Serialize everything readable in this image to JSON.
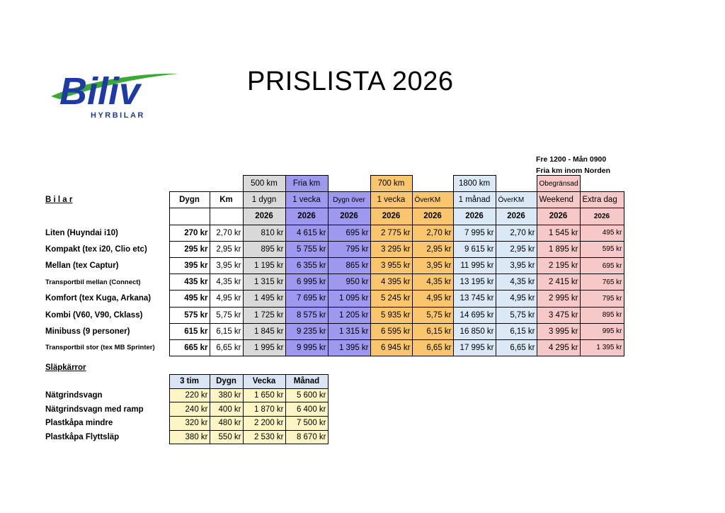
{
  "brand": {
    "name": "Biliv",
    "tagline": "HYRBILAR",
    "colors": {
      "blue": "#1d3aa6",
      "green": "#3aaa35"
    }
  },
  "title": "PRISLISTA 2026",
  "notes": {
    "line1": "Fre 1200 - Mån 0900",
    "line2": "Fria km inom Norden"
  },
  "cars": {
    "section_label": "B i l a r",
    "header_top": {
      "c1": "500 km",
      "c2": "Fria km",
      "c4": "700 km",
      "c6": "1800 km",
      "c8": "Obegränsad"
    },
    "header_mid": {
      "dygn": "Dygn",
      "km": "Km",
      "c1": "1 dygn",
      "c2": "1 vecka",
      "c3": "Dygn över",
      "c4": "1 vecka",
      "c5": "ÖverKM",
      "c6": "1 månad",
      "c7": "ÖverKM",
      "c8": "Weekend",
      "c9": "Extra dag"
    },
    "year": "2026",
    "rows": [
      {
        "name": "Liten (Huyndai i10)",
        "dygn": "270 kr",
        "km": "2,70 kr",
        "c1": "810 kr",
        "c2": "4 615 kr",
        "c3": "695 kr",
        "c4": "2 775 kr",
        "c5": "2,70 kr",
        "c6": "7 995 kr",
        "c7": "2,70 kr",
        "c8": "1 545 kr",
        "c9": "495 kr"
      },
      {
        "name": "Kompakt (tex i20, Clio etc)",
        "dygn": "295 kr",
        "km": "2,95 kr",
        "c1": "895 kr",
        "c2": "5 755 kr",
        "c3": "795 kr",
        "c4": "3 295 kr",
        "c5": "2,95 kr",
        "c6": "9 615 kr",
        "c7": "2,95 kr",
        "c8": "1 895 kr",
        "c9": "595 kr"
      },
      {
        "name": "Mellan (tex Captur)",
        "dygn": "395 kr",
        "km": "3,95 kr",
        "c1": "1 195 kr",
        "c2": "6 355 kr",
        "c3": "865 kr",
        "c4": "3 955 kr",
        "c5": "3,95 kr",
        "c6": "11 995 kr",
        "c7": "3,95 kr",
        "c8": "2 195 kr",
        "c9": "695 kr"
      },
      {
        "name": "Transportbil mellan (Connect)",
        "small": true,
        "dygn": "435 kr",
        "km": "4,35 kr",
        "c1": "1 315 kr",
        "c2": "6 995 kr",
        "c3": "950 kr",
        "c4": "4 395 kr",
        "c5": "4,35 kr",
        "c6": "13 195 kr",
        "c7": "4,35 kr",
        "c8": "2 415 kr",
        "c9": "765 kr"
      },
      {
        "name": "Komfort (tex Kuga, Arkana)",
        "dygn": "495 kr",
        "km": "4,95 kr",
        "c1": "1 495 kr",
        "c2": "7 695 kr",
        "c3": "1 095 kr",
        "c4": "5 245 kr",
        "c5": "4,95 kr",
        "c6": "13 745 kr",
        "c7": "4,95 kr",
        "c8": "2 995 kr",
        "c9": "795 kr"
      },
      {
        "name": "Kombi (V60, V90, Cklass)",
        "dygn": "575 kr",
        "km": "5,75 kr",
        "c1": "1 725 kr",
        "c2": "8 575 kr",
        "c3": "1 205 kr",
        "c4": "5 935 kr",
        "c5": "5,75 kr",
        "c6": "14 695 kr",
        "c7": "5,75 kr",
        "c8": "3 475 kr",
        "c9": "895 kr"
      },
      {
        "name": "Minibuss (9 personer)",
        "dygn": "615 kr",
        "km": "6,15 kr",
        "c1": "1 845 kr",
        "c2": "9 235 kr",
        "c3": "1 315 kr",
        "c4": "6 595 kr",
        "c5": "6,15 kr",
        "c6": "16 850 kr",
        "c7": "6,15 kr",
        "c8": "3 995 kr",
        "c9": "995 kr"
      },
      {
        "name": "Transportbil stor (tex MB Sprinter)",
        "small": true,
        "dygn": "665 kr",
        "km": "6,65 kr",
        "c1": "1 995 kr",
        "c2": "9 995 kr",
        "c3": "1 395 kr",
        "c4": "6 945 kr",
        "c5": "6,65 kr",
        "c6": "17 995 kr",
        "c7": "6,65 kr",
        "c8": "4 295 kr",
        "c9": "1 395 kr"
      }
    ]
  },
  "trailers": {
    "section_label": "Släpkärror",
    "headers": [
      "3 tim",
      "Dygn",
      "Vecka",
      "Månad"
    ],
    "rows": [
      {
        "name": "Nätgrindsvagn",
        "v": [
          "220 kr",
          "380 kr",
          "1 650 kr",
          "5 600 kr"
        ]
      },
      {
        "name": "Nätgrindsvagn med ramp",
        "v": [
          "240 kr",
          "400 kr",
          "1 870 kr",
          "6 400 kr"
        ]
      },
      {
        "name": "Plastkåpa mindre",
        "v": [
          "320 kr",
          "480 kr",
          "2 200 kr",
          "7 500 kr"
        ]
      },
      {
        "name": "Plastkåpa Flyttsläp",
        "v": [
          "380 kr",
          "550 kr",
          "2 530 kr",
          "8 670 kr"
        ]
      }
    ]
  }
}
